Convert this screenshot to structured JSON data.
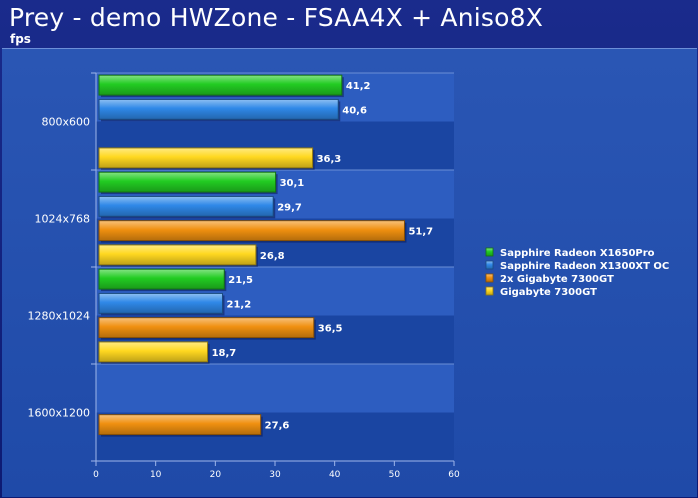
{
  "header": {
    "title": "Prey - demo HWZone - FSAA4X + Aniso8X",
    "subtitle": "fps"
  },
  "chart_data": {
    "type": "bar",
    "orientation": "horizontal",
    "categories": [
      "800x600",
      "1024x768",
      "1280x1024",
      "1600x1200"
    ],
    "series": [
      {
        "name": "Sapphire Radeon X1650Pro",
        "color": "#22cc22",
        "values": [
          41.2,
          30.1,
          21.5,
          null
        ],
        "labels": [
          "41,2",
          "30,1",
          "21,5",
          ""
        ]
      },
      {
        "name": "Sapphire Radeon X1300XT OC",
        "color": "#2f88e8",
        "values": [
          40.6,
          29.7,
          21.2,
          null
        ],
        "labels": [
          "40,6",
          "29,7",
          "21,2",
          ""
        ]
      },
      {
        "name": "2x Gigabyte 7300GT",
        "color": "#f09010",
        "values": [
          null,
          51.7,
          36.5,
          27.6
        ],
        "labels": [
          "",
          "51,7",
          "36,5",
          "27,6"
        ]
      },
      {
        "name": "Gigabyte 7300GT",
        "color": "#ffd820",
        "values": [
          36.3,
          26.8,
          18.7,
          null
        ],
        "labels": [
          "36,3",
          "26,8",
          "18,7",
          ""
        ]
      }
    ],
    "xlim": [
      0,
      60
    ],
    "xticks": [
      "0",
      "10",
      "20",
      "30",
      "40",
      "50",
      "60"
    ],
    "grid": true,
    "legend_position": "right"
  }
}
